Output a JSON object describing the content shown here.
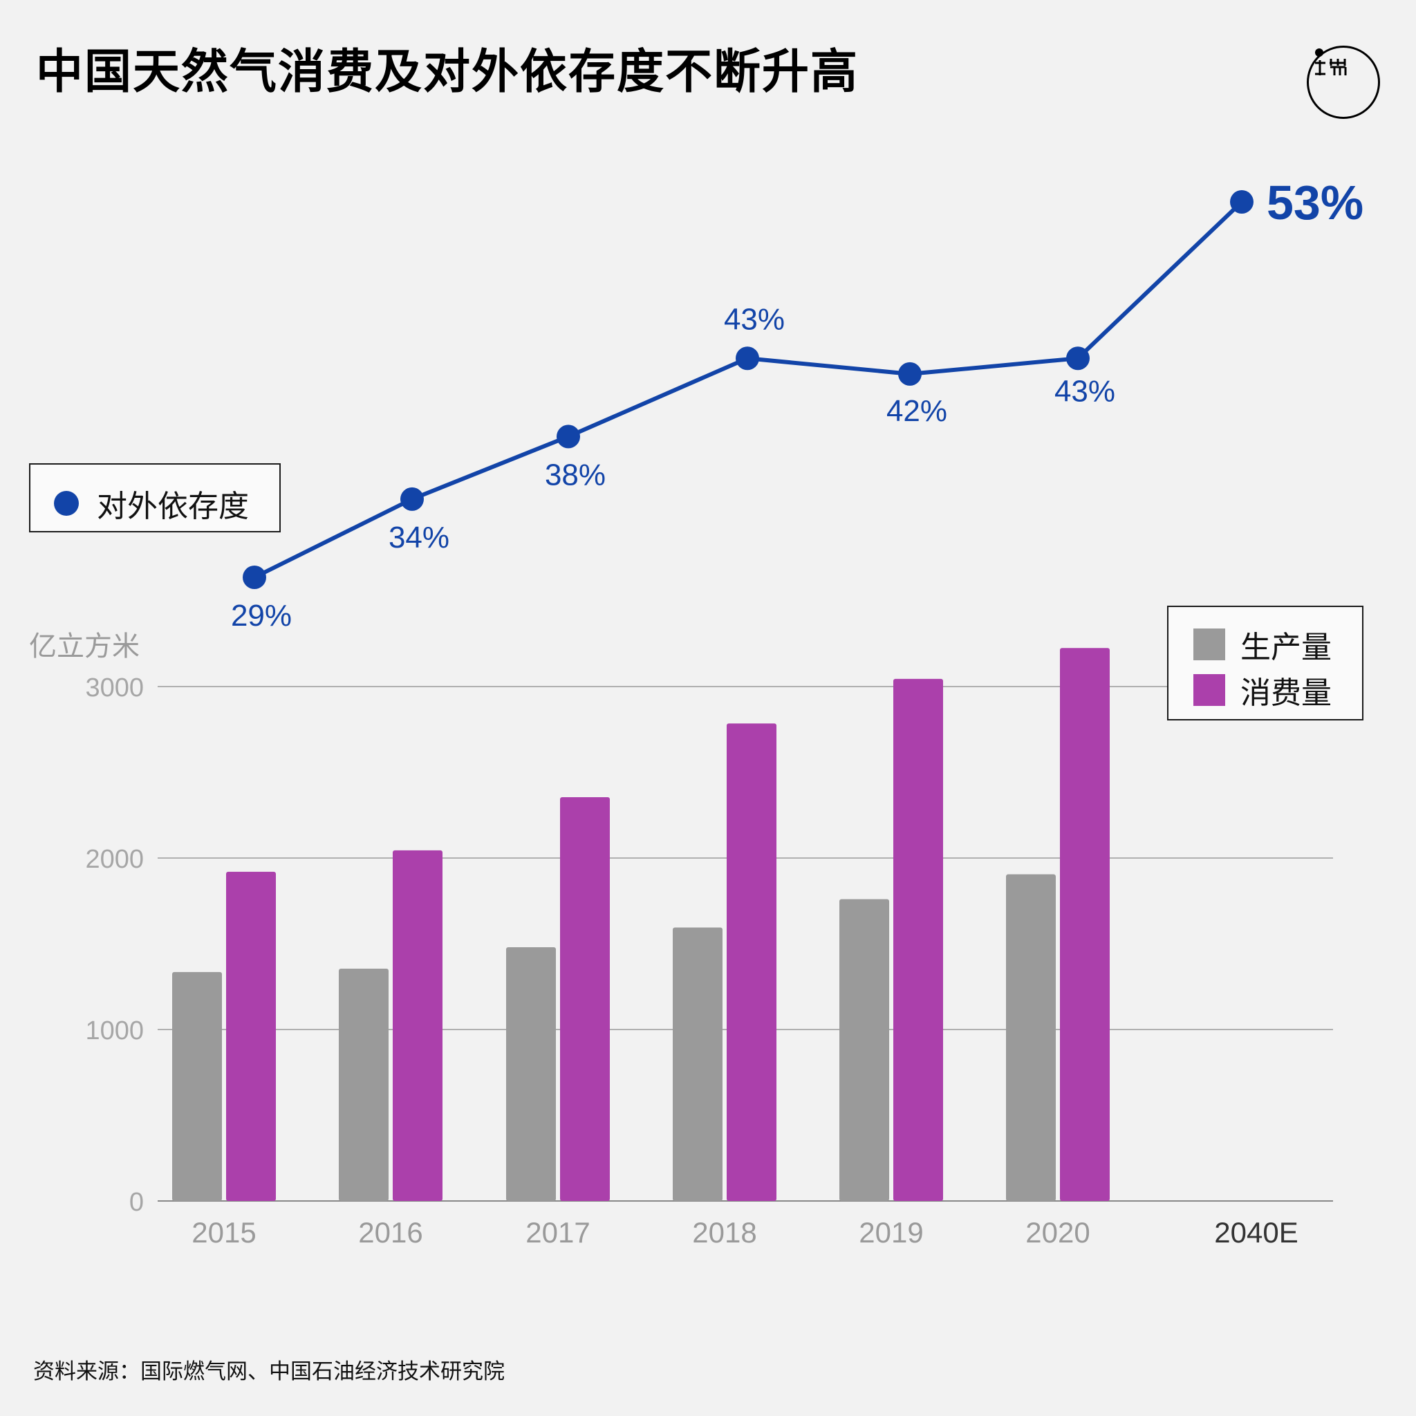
{
  "title": "中国天然气消费及对外依存度不断升高",
  "logo": {
    "icon": "ledger-logo-icon"
  },
  "source": "资料来源：国际燃气网、中国石油经济技术研究院",
  "legends": {
    "line": {
      "label": "对外依存度",
      "color": "#1244a8"
    },
    "bars": [
      {
        "label": "生产量",
        "color": "#9a9a9a"
      },
      {
        "label": "消费量",
        "color": "#ab40ab"
      }
    ]
  },
  "chart_data": {
    "type": "bar",
    "categories": [
      "2015",
      "2016",
      "2017",
      "2018",
      "2019",
      "2020",
      "2040E"
    ],
    "ylabel": "亿立方米",
    "ylim": [
      0,
      3000
    ],
    "yticks": [
      0,
      1000,
      2000,
      3000
    ],
    "grid": true,
    "series": [
      {
        "name": "生产量",
        "type": "bar",
        "color": "#9a9a9a",
        "values": [
          1335,
          1355,
          1480,
          1595,
          1760,
          1905,
          null
        ]
      },
      {
        "name": "消费量",
        "type": "bar",
        "color": "#ab40ab",
        "values": [
          1920,
          2045,
          2355,
          2785,
          3045,
          3225,
          null
        ]
      },
      {
        "name": "对外依存度",
        "type": "line",
        "color": "#1244a8",
        "values": [
          29,
          34,
          38,
          43,
          42,
          43,
          53
        ],
        "labels": [
          "29%",
          "34%",
          "38%",
          "43%",
          "42%",
          "43%",
          "53%"
        ]
      }
    ]
  }
}
